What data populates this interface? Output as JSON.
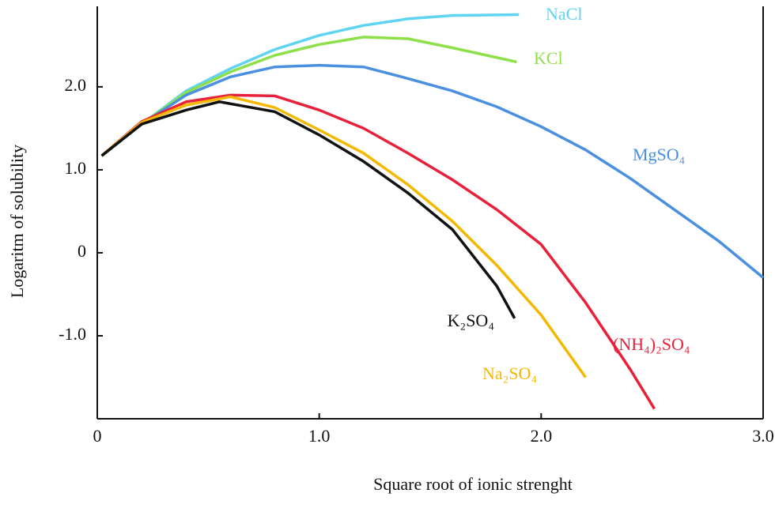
{
  "chart_data": {
    "type": "line",
    "x_label": "Square root of ionic strenght",
    "y_label": "Logaritm of solubility",
    "xlim": [
      0,
      3.0
    ],
    "ylim": [
      -2.0,
      2.97
    ],
    "xticks": [
      0,
      {
        "value": 1,
        "label": "1.0"
      },
      {
        "value": 2,
        "label": "2.0"
      },
      {
        "value": 3,
        "label": "3.0"
      }
    ],
    "yticks": [
      {
        "value": -1,
        "label": "-1.0"
      },
      0,
      {
        "value": 1,
        "label": "1.0"
      },
      {
        "value": 2,
        "label": "2.0"
      }
    ],
    "series": [
      {
        "name": "NaCl",
        "color": "#5fd4f2",
        "x": [
          0.02,
          0.2,
          0.4,
          0.6,
          0.8,
          1.0,
          1.2,
          1.4,
          1.6,
          1.9
        ],
        "values": [
          1.17,
          1.55,
          1.95,
          2.22,
          2.45,
          2.62,
          2.74,
          2.82,
          2.86,
          2.87
        ]
      },
      {
        "name": "KCl",
        "color": "#8ee04a",
        "x": [
          0.02,
          0.2,
          0.4,
          0.6,
          0.8,
          1.0,
          1.2,
          1.4,
          1.6,
          1.89
        ],
        "values": [
          1.17,
          1.55,
          1.93,
          2.18,
          2.38,
          2.51,
          2.6,
          2.58,
          2.47,
          2.3
        ]
      },
      {
        "name": "MgSO₄",
        "color": "#4a8fe0",
        "x": [
          0.02,
          0.2,
          0.4,
          0.6,
          0.8,
          1.0,
          1.2,
          1.4,
          1.6,
          1.8,
          2.0,
          2.2,
          2.4,
          2.6,
          2.8,
          3.0
        ],
        "values": [
          1.17,
          1.55,
          1.9,
          2.12,
          2.24,
          2.26,
          2.24,
          2.1,
          1.95,
          1.76,
          1.52,
          1.24,
          0.9,
          0.52,
          0.14,
          -0.3
        ]
      },
      {
        "name": "(NH₄)₂SO₄",
        "color": "#e8213a",
        "x": [
          0.02,
          0.2,
          0.4,
          0.6,
          0.8,
          1.0,
          1.2,
          1.4,
          1.6,
          1.8,
          2.0,
          2.2,
          2.4,
          2.51
        ],
        "values": [
          1.17,
          1.58,
          1.82,
          1.9,
          1.89,
          1.72,
          1.5,
          1.2,
          0.88,
          0.52,
          0.1,
          -0.6,
          -1.4,
          -1.88
        ]
      },
      {
        "name": "Na₂SO₄",
        "color": "#f5b800",
        "x": [
          0.02,
          0.2,
          0.4,
          0.6,
          0.8,
          1.0,
          1.2,
          1.4,
          1.6,
          1.8,
          2.0,
          2.2
        ],
        "values": [
          1.17,
          1.57,
          1.78,
          1.88,
          1.75,
          1.48,
          1.2,
          0.82,
          0.38,
          -0.15,
          -0.75,
          -1.5
        ]
      },
      {
        "name": "K₂SO₄",
        "color": "#111111",
        "x": [
          0.02,
          0.2,
          0.4,
          0.55,
          0.8,
          1.0,
          1.2,
          1.4,
          1.6,
          1.8,
          1.88
        ],
        "values": [
          1.17,
          1.55,
          1.72,
          1.82,
          1.7,
          1.42,
          1.1,
          0.72,
          0.28,
          -0.4,
          -0.79
        ]
      }
    ]
  }
}
